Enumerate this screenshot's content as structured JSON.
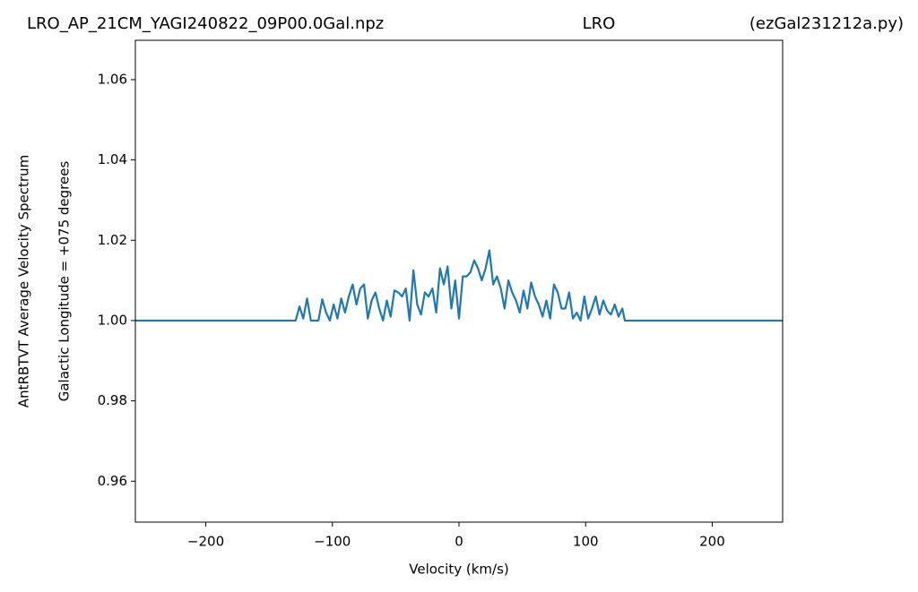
{
  "chart_data": {
    "type": "line",
    "title_left": "LRO_AP_21CM_YAGI240822_09P00.0Gal.npz",
    "title_center": "LRO",
    "title_right": "(ezGal231212a.py)",
    "xlabel": "Velocity (km/s)",
    "ylabel": [
      "AntRBTVT Average Velocity Spectrum",
      "Galactic Longitude = +075 degrees"
    ],
    "color": "#1f77b4",
    "xlim": [
      -255.6,
      255.6
    ],
    "ylim": [
      0.9498,
      1.0698
    ],
    "xticks": [
      {
        "value": -200,
        "label": "−200"
      },
      {
        "value": -100,
        "label": "−100"
      },
      0,
      100,
      200
    ],
    "yticks": [
      0.96,
      0.98,
      {
        "value": 1.0,
        "label": "1.00"
      },
      1.02,
      1.04,
      1.06
    ],
    "x": [
      -255.6,
      -129,
      -126,
      -123,
      -120,
      -117,
      -114,
      -111,
      -108,
      -105,
      -102,
      -99,
      -96,
      -93,
      -90,
      -87,
      -84,
      -81,
      -78,
      -75,
      -72,
      -69,
      -66,
      -63,
      -60,
      -57,
      -54,
      -51,
      -48,
      -45,
      -42,
      -39,
      -36,
      -33,
      -30,
      -27,
      -24,
      -21,
      -18,
      -15,
      -12,
      -9,
      -6,
      -3,
      0,
      3,
      6,
      9,
      12,
      15,
      18,
      21,
      24,
      27,
      30,
      33,
      36,
      39,
      42,
      45,
      48,
      51,
      54,
      57,
      60,
      63,
      66,
      69,
      72,
      75,
      78,
      81,
      84,
      87,
      90,
      93,
      96,
      99,
      102,
      105,
      108,
      111,
      114,
      117,
      120,
      123,
      126,
      129,
      131,
      255.6
    ],
    "values": [
      1.0,
      1.0,
      1.0035,
      1.0005,
      1.0055,
      1.0,
      1.0,
      1.0,
      1.0053,
      1.002,
      1.0,
      1.004,
      1.0005,
      1.0055,
      1.002,
      1.006,
      1.009,
      1.004,
      1.008,
      1.009,
      1.0005,
      1.005,
      1.007,
      1.003,
      1.0,
      1.005,
      1.001,
      1.0075,
      1.007,
      1.006,
      1.008,
      1.0,
      1.0125,
      1.004,
      1.0015,
      1.007,
      1.006,
      1.008,
      1.002,
      1.013,
      1.009,
      1.0135,
      1.003,
      1.01,
      1.0005,
      1.011,
      1.011,
      1.012,
      1.015,
      1.013,
      1.01,
      1.013,
      1.0175,
      1.009,
      1.011,
      1.008,
      1.003,
      1.01,
      1.007,
      1.005,
      1.002,
      1.0075,
      1.003,
      1.0095,
      1.006,
      1.004,
      1.001,
      1.005,
      1.0005,
      1.009,
      1.007,
      1.003,
      1.003,
      1.007,
      1.0005,
      1.002,
      1.0,
      1.006,
      1.0005,
      1.003,
      1.006,
      1.0015,
      1.005,
      1.0025,
      1.0015,
      1.004,
      1.001,
      1.003,
      1.0,
      1.0
    ]
  }
}
